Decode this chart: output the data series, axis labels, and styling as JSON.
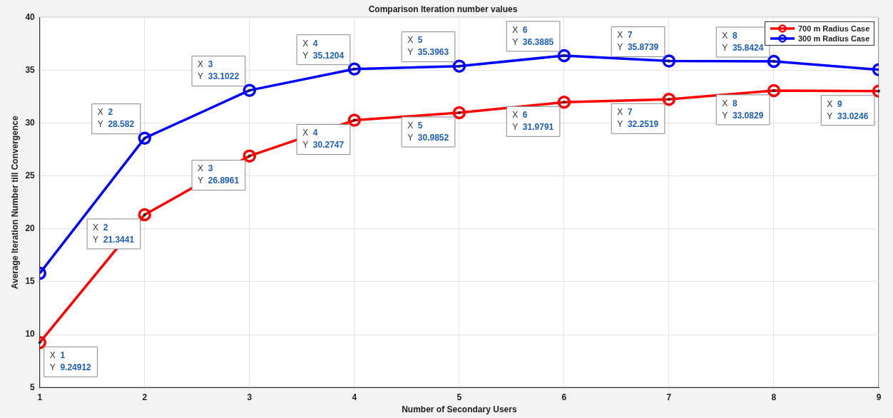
{
  "chart_data": {
    "type": "line",
    "title": "Comparison Iteration number values",
    "xlabel": "Number of Secondary Users",
    "ylabel": "Average Iteration Number till Convergence",
    "x": [
      1,
      2,
      3,
      4,
      5,
      6,
      7,
      8,
      9
    ],
    "series": [
      {
        "name": "700 m Radius Case",
        "color": "#ff0000",
        "values": [
          9.24912,
          21.3441,
          26.8961,
          30.2747,
          30.9852,
          31.9791,
          32.2519,
          33.0829,
          33.0246
        ]
      },
      {
        "name": "300 m Radius Case",
        "color": "#0000ff",
        "values": [
          15.8,
          28.582,
          33.1022,
          35.1204,
          35.3963,
          36.3885,
          35.8739,
          35.8424,
          35.05
        ]
      }
    ],
    "xlim": [
      1,
      9
    ],
    "xticks": [
      1,
      2,
      3,
      4,
      5,
      6,
      7,
      8,
      9
    ],
    "ylim": [
      5,
      40
    ],
    "yticks": [
      5,
      10,
      15,
      20,
      25,
      30,
      35,
      40
    ],
    "grid": true,
    "legend": "top right",
    "marker": "circle",
    "line_style": "solid",
    "annotations": [
      {
        "text": "X 1\nY 9.24912",
        "x": 1,
        "y": 9.24912
      },
      {
        "text": "X 2\nY 21.3441",
        "x": 2,
        "y": 21.3441
      },
      {
        "text": "X 3\nY 26.8961",
        "x": 3,
        "y": 26.8961
      },
      {
        "text": "X 4\nY 30.2747",
        "x": 4,
        "y": 30.2747
      },
      {
        "text": "X 5\nY 30.9852",
        "x": 5,
        "y": 30.9852
      },
      {
        "text": "X 6\nY 31.9791",
        "x": 6,
        "y": 31.9791
      },
      {
        "text": "X 7\nY 32.2519",
        "x": 7,
        "y": 32.2519
      },
      {
        "text": "X 8\nY 33.0829",
        "x": 8,
        "y": 33.0829
      },
      {
        "text": "X 9\nY 33.0246",
        "x": 9,
        "y": 33.0246
      },
      {
        "text": "X 2\nY 28.582",
        "x": 2,
        "y": 28.582
      },
      {
        "text": "X 3\nY 33.1022",
        "x": 3,
        "y": 33.1022
      },
      {
        "text": "X 4\nY 35.1204",
        "x": 4,
        "y": 35.1204
      },
      {
        "text": "X 5\nY 35.3963",
        "x": 5,
        "y": 35.3963
      },
      {
        "text": "X 6\nY 36.3885",
        "x": 6,
        "y": 36.3885
      },
      {
        "text": "X 7\nY 35.8739",
        "x": 7,
        "y": 35.8739
      },
      {
        "text": "X 8\nY 35.8424",
        "x": 8,
        "y": 35.8424
      }
    ]
  }
}
